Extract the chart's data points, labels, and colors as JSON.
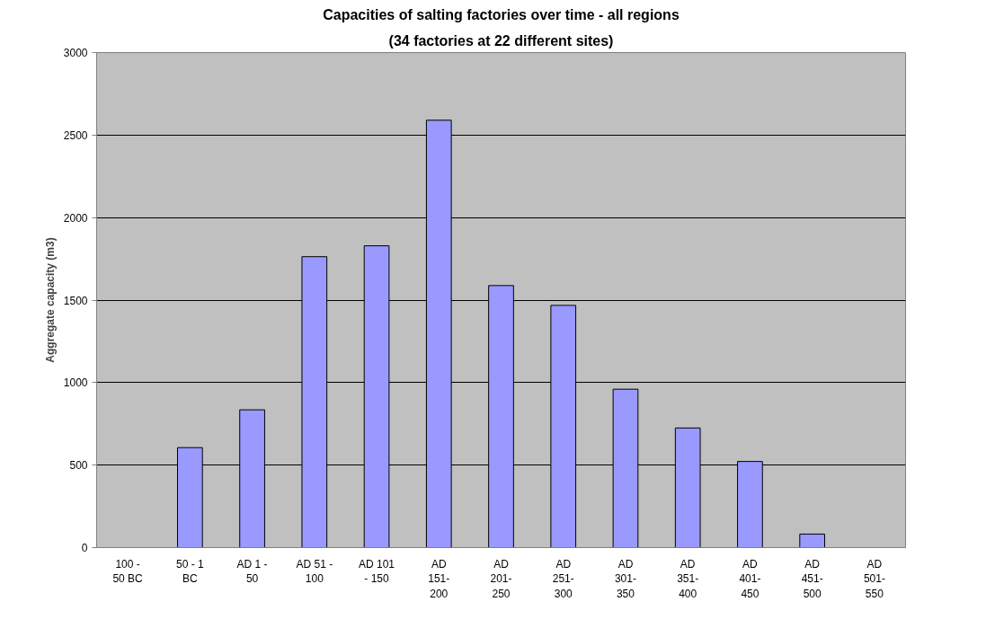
{
  "chart_data": {
    "type": "bar",
    "title": "Capacities of salting factories over time - all regions",
    "subtitle": "(34 factories at 22 different sites)",
    "ylabel": "Aggregate capacity (m3)",
    "categories": [
      "100 -\n50 BC",
      "50 - 1\nBC",
      "AD 1 -\n50",
      "AD 51 -\n100",
      "AD 101\n- 150",
      "AD\n151-\n200",
      "AD\n201-\n250",
      "AD\n251-\n300",
      "AD\n301-\n350",
      "AD\n351-\n400",
      "AD\n401-\n450",
      "AD\n451-\n500",
      "AD\n501-\n550"
    ],
    "values": [
      null,
      606,
      835,
      1763,
      1829,
      2590,
      1588,
      1468,
      960,
      725,
      522,
      82,
      null
    ],
    "color": "#9999ff",
    "ylim": [
      0,
      3000
    ],
    "yticks": [
      0,
      500,
      1000,
      1500,
      2000,
      2500,
      3000
    ],
    "grid": "y"
  }
}
